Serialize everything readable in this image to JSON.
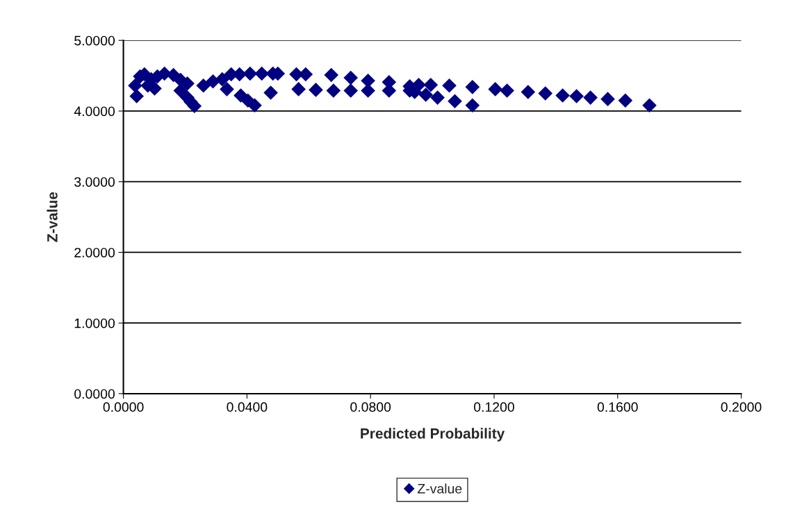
{
  "chart_data": {
    "type": "scatter",
    "xlabel": "Predicted Probability",
    "ylabel": "Z-value",
    "series": [
      {
        "name": "Z-value",
        "color": "#000080",
        "x": [
          0.0043,
          0.0038,
          0.0054,
          0.0068,
          0.009,
          0.0079,
          0.0101,
          0.011,
          0.0133,
          0.0162,
          0.0185,
          0.0207,
          0.0185,
          0.0207,
          0.0218,
          0.023,
          0.0259,
          0.029,
          0.032,
          0.0349,
          0.0376,
          0.041,
          0.0448,
          0.0484,
          0.05,
          0.056,
          0.059,
          0.0673,
          0.0335,
          0.038,
          0.0403,
          0.0425,
          0.0477,
          0.0567,
          0.0623,
          0.068,
          0.0736,
          0.0792,
          0.086,
          0.0927,
          0.0736,
          0.0792,
          0.086,
          0.0927,
          0.0943,
          0.0979,
          0.1017,
          0.1073,
          0.113,
          0.0956,
          0.0995,
          0.1055,
          0.113,
          0.1204,
          0.1242,
          0.131,
          0.1366,
          0.1422,
          0.1467,
          0.1512,
          0.1568,
          0.1625,
          0.1703
        ],
        "values": [
          4.21,
          4.36,
          4.49,
          4.52,
          4.45,
          4.36,
          4.32,
          4.49,
          4.53,
          4.51,
          4.44,
          4.39,
          4.29,
          4.19,
          4.13,
          4.07,
          4.36,
          4.42,
          4.45,
          4.52,
          4.52,
          4.53,
          4.53,
          4.53,
          4.53,
          4.52,
          4.52,
          4.51,
          4.31,
          4.22,
          4.15,
          4.08,
          4.26,
          4.31,
          4.3,
          4.29,
          4.47,
          4.43,
          4.41,
          4.35,
          4.29,
          4.29,
          4.29,
          4.29,
          4.27,
          4.23,
          4.19,
          4.14,
          4.08,
          4.37,
          4.37,
          4.36,
          4.34,
          4.31,
          4.29,
          4.27,
          4.25,
          4.22,
          4.21,
          4.19,
          4.17,
          4.15,
          4.08
        ]
      }
    ],
    "xlim": [
      0,
      0.2
    ],
    "ylim": [
      0,
      5
    ],
    "xticks": [
      {
        "value": 0,
        "label": "0.0000"
      },
      {
        "value": 0.04,
        "label": "0.0400"
      },
      {
        "value": 0.08,
        "label": "0.0800"
      },
      {
        "value": 0.12,
        "label": "0.1200"
      },
      {
        "value": 0.16,
        "label": "0.1600"
      },
      {
        "value": 0.2,
        "label": "0.2000"
      }
    ],
    "yticks": [
      {
        "value": 0,
        "label": "0.0000"
      },
      {
        "value": 1,
        "label": "1.0000"
      },
      {
        "value": 2,
        "label": "2.0000"
      },
      {
        "value": 3,
        "label": "3.0000"
      },
      {
        "value": 4,
        "label": "4.0000"
      },
      {
        "value": 5,
        "label": "5.0000"
      }
    ],
    "grid": "y",
    "legend": "bottom",
    "marker": "diamond"
  }
}
